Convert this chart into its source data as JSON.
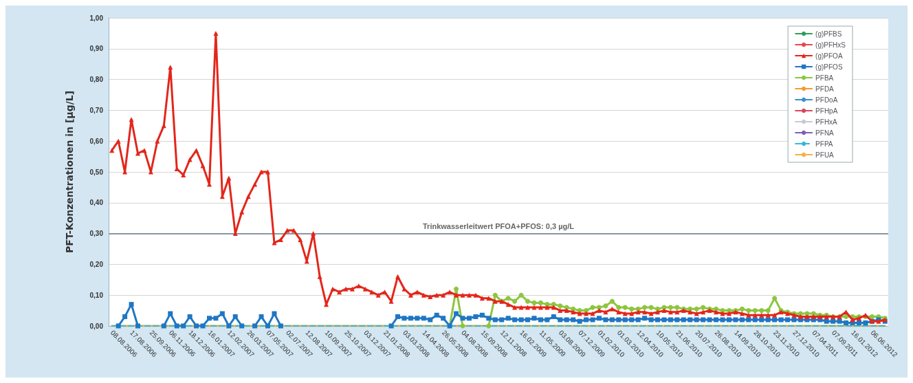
{
  "chart_data": {
    "type": "line",
    "ylabel": "PFT-Konzentrationen in [µg/L]",
    "categories": [
      "08.08.2006",
      null,
      null,
      "17.08.2006",
      null,
      null,
      "25.09.2006",
      null,
      null,
      "06.11.2006",
      null,
      null,
      "18.12.2006",
      null,
      null,
      "16.01.2007",
      null,
      null,
      "12.02.2007",
      null,
      null,
      "26.03.2007",
      null,
      null,
      "07.05.2007",
      null,
      null,
      "02.07.2007",
      null,
      null,
      "12.08.2007",
      null,
      null,
      "10.09.2007",
      null,
      null,
      "25.10.2007",
      null,
      null,
      "03.12.2007",
      null,
      null,
      "21.01.2008",
      null,
      null,
      "03.03.2008",
      null,
      null,
      "14.04.2008",
      null,
      null,
      "26.05.2008",
      null,
      null,
      "04.08.2008",
      null,
      null,
      "15.09.2008",
      null,
      null,
      "12.11.2008",
      null,
      null,
      "16.02.2009",
      null,
      null,
      "11.05.2009",
      null,
      null,
      "03.08.2009",
      null,
      null,
      "07.12.2009",
      null,
      null,
      "01.02.2010",
      null,
      null,
      "01.03.2010",
      null,
      null,
      "12.04.2010",
      null,
      null,
      "10.05.2010",
      null,
      null,
      "21.06.2010",
      null,
      null,
      "20.07.2010",
      null,
      null,
      "26.08.2010",
      null,
      null,
      "14.09.2010",
      null,
      null,
      "28.10.2010",
      null,
      null,
      "23.11.2010",
      null,
      null,
      "27.12.2010",
      null,
      null,
      "07.04.2011",
      null,
      null,
      "07.09.2011",
      null,
      null,
      "16.01.2012",
      null,
      null,
      "06.06.2012",
      null,
      null
    ],
    "ylim": [
      0,
      1
    ],
    "yticks": [
      {
        "value": 0,
        "label": "0,00"
      },
      {
        "value": 0.1,
        "label": "0,10"
      },
      {
        "value": 0.2,
        "label": "0,20"
      },
      {
        "value": 0.3,
        "label": "0,30"
      },
      {
        "value": 0.4,
        "label": "0,40"
      },
      {
        "value": 0.5,
        "label": "0,50"
      },
      {
        "value": 0.6,
        "label": "0,60"
      },
      {
        "value": 0.7,
        "label": "0,70"
      },
      {
        "value": 0.8,
        "label": "0,80"
      },
      {
        "value": 0.9,
        "label": "0,90"
      },
      {
        "value": 1,
        "label": "1,00"
      }
    ],
    "grid": "y",
    "legend": "top right",
    "ref_lines": [
      {
        "axis": "y",
        "value": 0.3,
        "label": "Trinkwasserleitwert PFOA+PFOS: 0,3 µg/L",
        "color": "#8a96a3"
      }
    ],
    "series": [
      {
        "name": "(g)PFBS",
        "color": "#2e9e5b",
        "marker": "circle",
        "values": [
          null,
          null,
          null,
          null,
          null,
          null,
          null,
          null,
          null,
          null,
          null,
          null,
          null,
          null,
          null,
          null,
          null,
          null,
          null,
          null,
          null,
          null,
          null,
          null,
          null,
          null,
          null,
          null,
          null,
          null,
          null,
          null,
          null,
          null,
          null,
          null,
          null,
          null,
          null,
          null,
          null,
          null,
          null,
          null,
          null,
          null,
          null,
          null,
          null,
          null,
          null,
          null,
          null,
          null,
          null,
          null,
          null,
          null,
          null,
          null,
          null,
          null,
          null,
          null,
          null,
          null,
          null,
          null,
          null,
          null,
          null,
          null,
          null,
          null,
          null,
          null,
          null,
          null,
          null,
          null,
          null,
          null,
          null,
          null,
          null,
          null,
          null,
          null,
          null,
          null,
          null,
          null,
          null,
          null,
          null,
          null,
          null,
          null,
          null,
          null,
          null,
          null,
          null,
          null,
          null,
          null,
          null,
          null,
          null,
          null,
          null,
          null,
          null,
          null,
          null,
          null,
          null,
          null,
          null,
          null
        ]
      },
      {
        "name": "(g)PFHxS",
        "color": "#e8474f",
        "marker": "circle",
        "values": [
          null,
          null,
          null,
          null,
          null,
          null,
          null,
          null,
          null,
          null,
          null,
          null,
          null,
          null,
          null,
          null,
          null,
          null,
          null,
          null,
          null,
          null,
          null,
          null,
          null,
          null,
          null,
          null,
          null,
          null,
          null,
          null,
          null,
          null,
          null,
          null,
          null,
          null,
          null,
          null,
          null,
          null,
          null,
          null,
          null,
          null,
          null,
          null,
          null,
          null,
          null,
          null,
          null,
          null,
          null,
          null,
          null,
          null,
          null,
          null,
          null,
          null,
          null,
          null,
          null,
          null,
          null,
          null,
          null,
          null,
          null,
          null,
          null,
          null,
          null,
          null,
          null,
          null,
          null,
          null,
          null,
          null,
          null,
          null,
          null,
          null,
          null,
          null,
          null,
          null,
          null,
          null,
          null,
          null,
          null,
          null,
          null,
          null,
          null,
          null,
          null,
          null,
          null,
          null,
          null,
          null,
          null,
          null,
          null,
          null,
          null,
          null,
          null,
          null,
          null,
          null,
          null,
          null,
          null,
          null
        ]
      },
      {
        "name": "(g)PFOA",
        "color": "#e3261b",
        "marker": "triangle",
        "values": [
          0.57,
          0.6,
          0.5,
          0.67,
          0.56,
          0.57,
          0.5,
          0.6,
          0.65,
          0.84,
          0.51,
          0.49,
          0.54,
          0.57,
          0.52,
          0.46,
          0.95,
          0.42,
          0.48,
          0.3,
          0.37,
          0.42,
          0.46,
          0.5,
          0.5,
          0.27,
          0.28,
          0.31,
          0.31,
          0.28,
          0.21,
          0.3,
          0.16,
          0.07,
          0.12,
          0.11,
          0.12,
          0.12,
          0.13,
          0.12,
          0.11,
          0.1,
          0.11,
          0.08,
          0.16,
          0.12,
          0.1,
          0.11,
          0.1,
          0.095,
          0.1,
          0.1,
          0.11,
          0.1,
          0.1,
          0.1,
          0.1,
          0.09,
          0.09,
          0.08,
          0.08,
          0.07,
          0.06,
          0.06,
          0.06,
          0.06,
          0.06,
          0.06,
          0.06,
          0.05,
          0.05,
          0.045,
          0.04,
          0.04,
          0.04,
          0.05,
          0.045,
          0.055,
          0.045,
          0.04,
          0.04,
          0.045,
          0.045,
          0.04,
          0.045,
          0.05,
          0.045,
          0.045,
          0.05,
          0.045,
          0.04,
          0.045,
          0.05,
          0.045,
          0.04,
          0.04,
          0.045,
          0.04,
          0.035,
          0.035,
          0.035,
          0.035,
          0.035,
          0.045,
          0.04,
          0.035,
          0.03,
          0.03,
          0.03,
          0.03,
          0.03,
          0.03,
          0.03,
          0.045,
          0.02,
          0.025,
          0.035,
          0.015,
          0.015,
          0.02
        ]
      },
      {
        "name": "(g)PFOS",
        "color": "#1f77c4",
        "marker": "square",
        "values": [
          null,
          0,
          0.03,
          0.07,
          0,
          null,
          null,
          null,
          0,
          0.04,
          0,
          0,
          0.03,
          0,
          0,
          0.025,
          0.025,
          0.04,
          0,
          0.03,
          0,
          null,
          0,
          0.03,
          0,
          0.04,
          0,
          null,
          null,
          null,
          null,
          null,
          null,
          null,
          null,
          null,
          null,
          null,
          null,
          null,
          null,
          null,
          null,
          0,
          0.03,
          0.025,
          0.025,
          0.025,
          0.025,
          0.02,
          0.035,
          0.025,
          0,
          0.04,
          0.025,
          0.025,
          0.03,
          0.035,
          0.025,
          0.02,
          0.02,
          0.025,
          0.02,
          0.02,
          0.02,
          0.025,
          0.02,
          0.02,
          0.03,
          0.02,
          0.02,
          0.02,
          0.015,
          0.02,
          0.02,
          0.025,
          0.02,
          0.02,
          0.02,
          0.02,
          0.02,
          0.02,
          0.025,
          0.02,
          0.02,
          0.02,
          0.02,
          0.02,
          0.02,
          0.02,
          0.02,
          0.02,
          0.02,
          0.02,
          0.02,
          0.02,
          0.02,
          0.02,
          0.02,
          0.02,
          0.02,
          0.02,
          0.02,
          0.02,
          0.02,
          0.02,
          0.02,
          0.02,
          0.02,
          0.02,
          0.015,
          0.015,
          0.015,
          0.01,
          0.01,
          0.01,
          0.01,
          0.015,
          0.02,
          0.015
        ]
      },
      {
        "name": "PFBA",
        "color": "#8cc63f",
        "marker": "circle",
        "values": [
          null,
          null,
          null,
          null,
          null,
          null,
          null,
          null,
          null,
          null,
          null,
          null,
          null,
          null,
          null,
          null,
          null,
          null,
          null,
          null,
          null,
          null,
          null,
          null,
          null,
          null,
          null,
          null,
          null,
          null,
          null,
          null,
          null,
          null,
          null,
          null,
          null,
          null,
          null,
          null,
          null,
          null,
          null,
          null,
          null,
          null,
          null,
          null,
          null,
          null,
          null,
          null,
          0,
          0.12,
          0,
          null,
          null,
          null,
          0,
          0.1,
          0.08,
          0.09,
          0.08,
          0.1,
          0.08,
          0.075,
          0.075,
          0.07,
          0.07,
          0.065,
          0.06,
          0.055,
          0.05,
          0.05,
          0.06,
          0.06,
          0.065,
          0.08,
          0.06,
          0.06,
          0.055,
          0.055,
          0.06,
          0.06,
          0.055,
          0.06,
          0.06,
          0.06,
          0.055,
          0.055,
          0.055,
          0.06,
          0.055,
          0.055,
          0.05,
          0.05,
          0.05,
          0.055,
          0.05,
          0.05,
          0.05,
          0.05,
          0.09,
          0.05,
          0.045,
          0.04,
          0.04,
          0.04,
          0.04,
          0.035,
          0.035,
          0.03,
          0.03,
          0.03,
          0.03,
          0.03,
          0.03,
          0.03,
          0.03,
          0.025
        ]
      },
      {
        "name": "PFDA",
        "color": "#f39b2f",
        "marker": "circle",
        "values": [
          null,
          null,
          null,
          null,
          null,
          null,
          null,
          null,
          null,
          null,
          null,
          null,
          null,
          null,
          null,
          null,
          null,
          null,
          null,
          null,
          null,
          null,
          null,
          null,
          null,
          null,
          null,
          null,
          null,
          null,
          null,
          null,
          null,
          null,
          null,
          null,
          null,
          null,
          null,
          null,
          null,
          null,
          null,
          null,
          null,
          null,
          null,
          null,
          null,
          null,
          null,
          null,
          null,
          null,
          null,
          null,
          null,
          null,
          null,
          null,
          null,
          null,
          null,
          null,
          null,
          null,
          null,
          null,
          null,
          null,
          null,
          null,
          null,
          null,
          null,
          null,
          null,
          null,
          null,
          null,
          null,
          null,
          null,
          null,
          null,
          null,
          null,
          null,
          null,
          null,
          null,
          null,
          null,
          null,
          null,
          null,
          null,
          null,
          null,
          null,
          null,
          null,
          null,
          null,
          null,
          null,
          null,
          null,
          null,
          null,
          null,
          null,
          null,
          null,
          null,
          null,
          null,
          null,
          null,
          null
        ]
      },
      {
        "name": "PFDoA",
        "color": "#3a8fd0",
        "marker": "circle",
        "values": [
          null,
          null,
          null,
          null,
          null,
          null,
          null,
          null,
          null,
          null,
          null,
          null,
          null,
          null,
          null,
          null,
          null,
          null,
          null,
          null,
          null,
          null,
          null,
          null,
          null,
          null,
          null,
          null,
          null,
          null,
          null,
          null,
          null,
          null,
          null,
          null,
          null,
          null,
          null,
          null,
          null,
          null,
          null,
          null,
          null,
          null,
          null,
          null,
          null,
          null,
          null,
          null,
          null,
          null,
          null,
          null,
          null,
          null,
          null,
          null,
          null,
          null,
          null,
          null,
          null,
          null,
          null,
          null,
          null,
          null,
          null,
          null,
          null,
          null,
          null,
          null,
          null,
          null,
          null,
          null,
          null,
          null,
          null,
          null,
          null,
          null,
          null,
          null,
          null,
          null,
          null,
          null,
          null,
          null,
          null,
          null,
          null,
          null,
          null,
          null,
          null,
          null,
          null,
          null,
          null,
          null,
          null,
          null,
          null,
          null,
          null,
          null,
          null,
          null,
          null,
          null,
          null,
          null,
          null,
          null
        ]
      },
      {
        "name": "PFHpA",
        "color": "#d9455f",
        "marker": "circle",
        "values": [
          null,
          null,
          null,
          null,
          null,
          null,
          null,
          null,
          null,
          null,
          null,
          null,
          null,
          null,
          null,
          null,
          null,
          null,
          null,
          null,
          null,
          null,
          null,
          null,
          null,
          null,
          null,
          null,
          null,
          null,
          null,
          null,
          null,
          null,
          null,
          null,
          null,
          null,
          null,
          null,
          null,
          null,
          null,
          null,
          null,
          null,
          null,
          null,
          null,
          null,
          null,
          null,
          null,
          null,
          null,
          null,
          null,
          null,
          null,
          null,
          null,
          null,
          null,
          null,
          null,
          null,
          null,
          null,
          null,
          null,
          null,
          null,
          null,
          null,
          null,
          null,
          null,
          null,
          null,
          null,
          null,
          null,
          null,
          null,
          null,
          null,
          null,
          null,
          null,
          null,
          null,
          null,
          null,
          null,
          null,
          null,
          null,
          null,
          null,
          null,
          null,
          null,
          null,
          null,
          null,
          null,
          null,
          null,
          null,
          null,
          null,
          null,
          null,
          null,
          null,
          null,
          null,
          null,
          null,
          null
        ]
      },
      {
        "name": "PFHxA",
        "color": "#c8c8d8",
        "marker": "circle",
        "values": [
          null,
          null,
          null,
          null,
          null,
          null,
          null,
          null,
          null,
          null,
          null,
          null,
          null,
          null,
          null,
          null,
          null,
          null,
          null,
          null,
          null,
          null,
          null,
          null,
          null,
          null,
          null,
          null,
          null,
          null,
          null,
          null,
          null,
          null,
          null,
          null,
          null,
          null,
          null,
          null,
          null,
          null,
          null,
          null,
          null,
          null,
          null,
          null,
          null,
          null,
          null,
          null,
          null,
          null,
          null,
          null,
          null,
          null,
          null,
          null,
          null,
          null,
          null,
          null,
          null,
          null,
          null,
          null,
          null,
          null,
          null,
          null,
          null,
          null,
          null,
          null,
          null,
          null,
          null,
          null,
          null,
          null,
          null,
          null,
          null,
          null,
          null,
          null,
          null,
          null,
          null,
          null,
          null,
          null,
          null,
          null,
          null,
          null,
          null,
          null,
          null,
          null,
          null,
          null,
          null,
          null,
          null,
          null,
          null,
          null,
          null,
          null,
          null,
          null,
          null,
          null,
          null,
          null,
          null,
          null
        ]
      },
      {
        "name": "PFNA",
        "color": "#7b5fb5",
        "marker": "circle",
        "values": [
          null,
          null,
          null,
          null,
          null,
          null,
          null,
          null,
          null,
          null,
          null,
          null,
          null,
          null,
          null,
          null,
          null,
          null,
          null,
          null,
          null,
          null,
          null,
          null,
          null,
          null,
          null,
          null,
          null,
          null,
          null,
          null,
          null,
          null,
          null,
          null,
          null,
          null,
          null,
          null,
          null,
          null,
          null,
          null,
          null,
          null,
          null,
          null,
          null,
          null,
          null,
          null,
          null,
          null,
          null,
          null,
          null,
          null,
          null,
          null,
          null,
          null,
          null,
          null,
          null,
          null,
          null,
          null,
          null,
          null,
          null,
          null,
          null,
          null,
          null,
          null,
          null,
          null,
          null,
          null,
          null,
          null,
          null,
          null,
          null,
          null,
          null,
          null,
          null,
          null,
          null,
          null,
          null,
          null,
          null,
          null,
          null,
          null,
          null,
          null,
          null,
          null,
          null,
          null,
          null,
          null,
          null,
          null,
          null,
          null,
          null,
          null,
          null,
          null,
          null,
          null,
          null,
          null,
          null,
          null
        ]
      },
      {
        "name": "PFPA",
        "color": "#35b8d8",
        "marker": "none",
        "line_style": "dashed",
        "values": [
          0,
          0,
          0,
          0,
          0,
          0,
          0,
          0,
          0,
          0,
          0,
          0,
          0,
          0,
          0,
          0,
          0,
          0,
          0,
          0,
          0,
          0,
          0,
          0,
          0,
          0,
          0,
          0,
          0,
          0,
          0,
          0,
          0,
          0,
          0,
          0,
          0,
          0,
          0,
          0,
          0,
          0,
          0,
          0,
          0,
          0,
          0,
          0,
          0,
          0,
          0,
          0,
          0,
          0,
          0,
          0,
          0,
          0,
          0,
          0,
          0,
          0,
          0,
          0,
          0,
          0,
          0,
          0,
          0,
          0,
          0,
          0,
          0,
          0,
          0,
          0,
          0,
          0,
          0,
          0,
          0,
          0,
          0,
          0,
          0,
          0,
          0,
          0,
          0,
          0,
          0,
          0,
          0,
          0,
          0,
          0,
          0,
          0,
          0,
          0,
          0,
          0,
          0,
          0,
          0,
          0,
          0,
          0,
          0,
          0,
          0,
          0,
          0,
          0,
          0,
          0,
          0,
          0,
          0,
          0
        ]
      },
      {
        "name": "PFUA",
        "color": "#f5b041",
        "marker": "none",
        "values": [
          0,
          0,
          0,
          0,
          0,
          0,
          0,
          0,
          0,
          0,
          0,
          0,
          0,
          0,
          0,
          0,
          0,
          0,
          0,
          0,
          0,
          0,
          0,
          0,
          0,
          0,
          0,
          0,
          0,
          0,
          0,
          0,
          0,
          0,
          0,
          0,
          0,
          0,
          0,
          0,
          0,
          0,
          0,
          0,
          0,
          0,
          0,
          0,
          0,
          0,
          0,
          0,
          0,
          0,
          0,
          0,
          0,
          0,
          0,
          0,
          0,
          0,
          0,
          0,
          0,
          0,
          0,
          0,
          0,
          0,
          0,
          0,
          0,
          0,
          0,
          0,
          0,
          0,
          0,
          0,
          0,
          0,
          0,
          0,
          0,
          0,
          0,
          0,
          0,
          0,
          0,
          0,
          0,
          0,
          0,
          0,
          0,
          0,
          0,
          0,
          0,
          0,
          0,
          0,
          0,
          0,
          0,
          0,
          0,
          0,
          0,
          0,
          0,
          0,
          0,
          0,
          0,
          0,
          0,
          0
        ]
      }
    ]
  }
}
